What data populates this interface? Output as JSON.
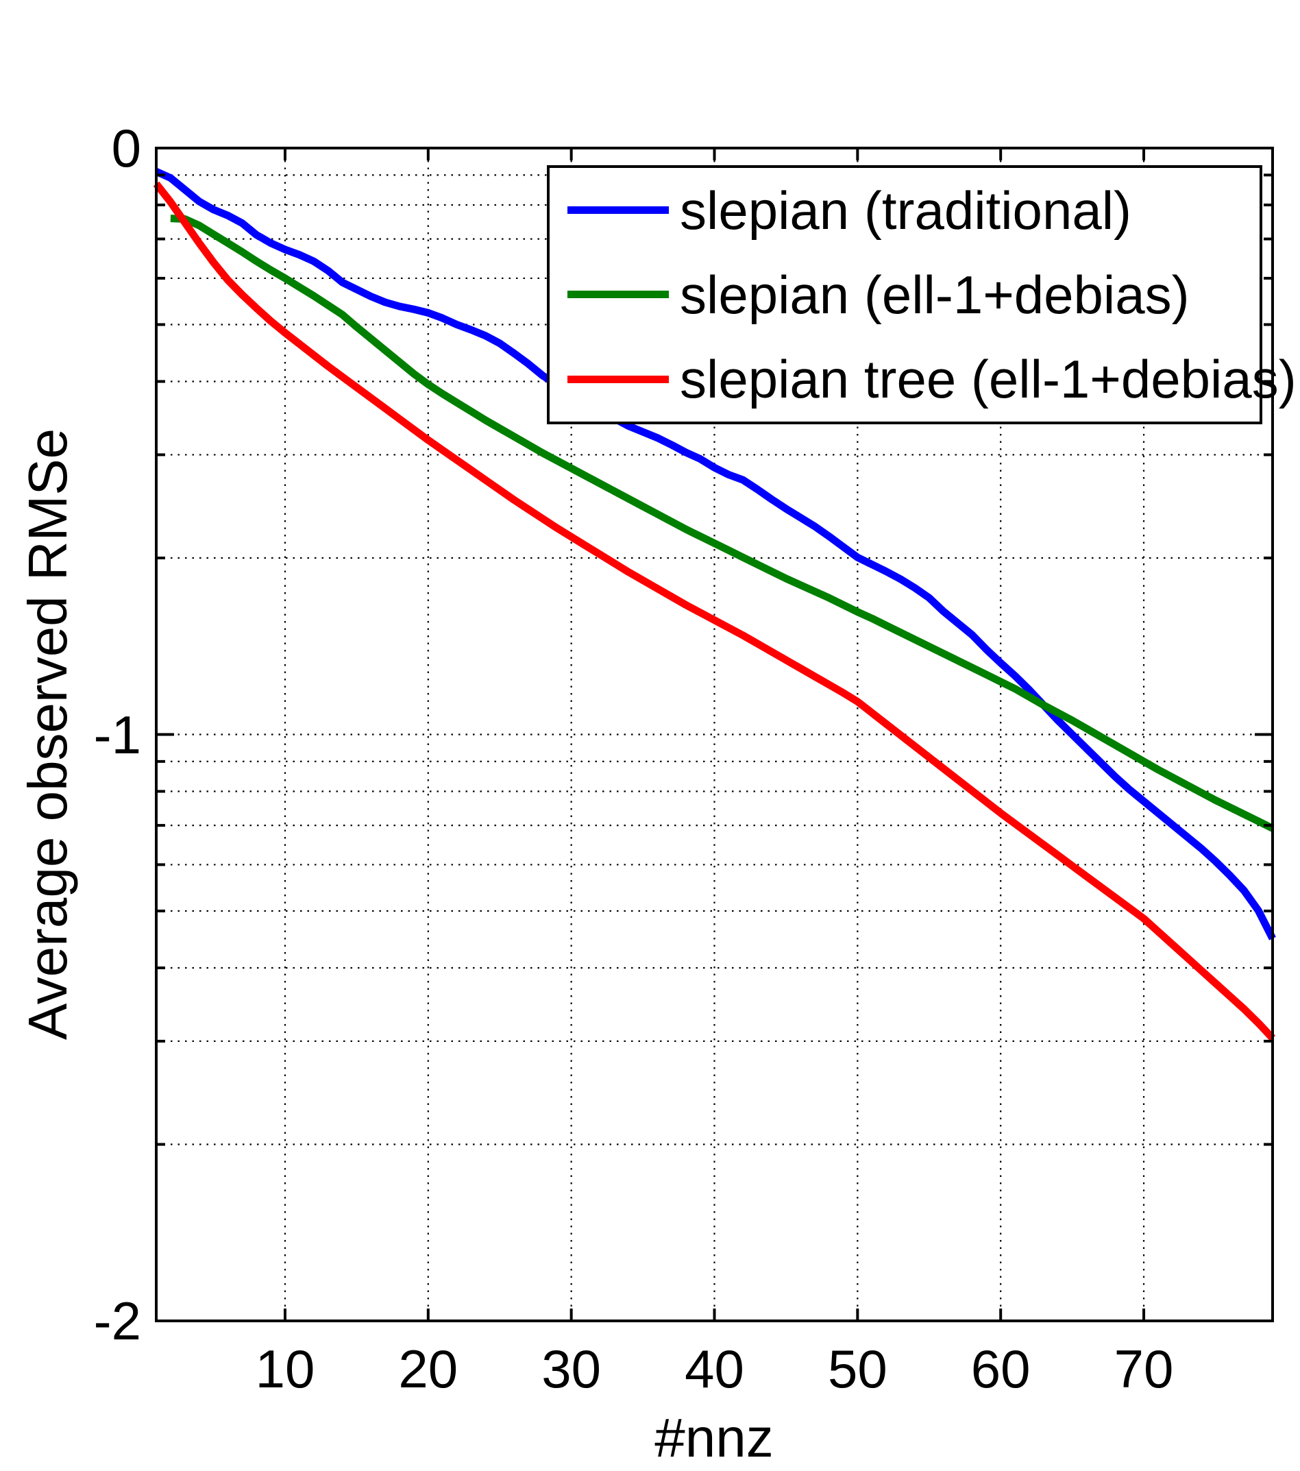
{
  "figure": {
    "background": "#ffffff",
    "text_color": "#000000",
    "axis_color": "#000000"
  },
  "chart_data": {
    "type": "line",
    "title": "",
    "xlabel": "#nnz",
    "ylabel": "Average observed RMSe",
    "xlim": [
      1,
      79
    ],
    "ylim": [
      -2,
      0
    ],
    "grid": "dotted black gridlines at x major ticks and at y minor (log-spaced) positions plus y=-1",
    "legend_position": "upper right (inside axes, opaque white box, black border)",
    "x_major_ticks": [
      10,
      20,
      30,
      40,
      50,
      60,
      70
    ],
    "x_tick_labels": [
      "10",
      "20",
      "30",
      "40",
      "50",
      "60",
      "70"
    ],
    "y_major_ticks": [
      0,
      -1,
      -2
    ],
    "y_tick_labels": [
      "0",
      "-1",
      "-2"
    ],
    "y_minor_ticks": [
      -0.046,
      -0.097,
      -0.155,
      -0.222,
      -0.301,
      -0.398,
      -0.523,
      -0.699,
      -1.046,
      -1.097,
      -1.155,
      -1.222,
      -1.301,
      -1.398,
      -1.523,
      -1.699
    ],
    "y_gridlines": [
      -0.046,
      -0.097,
      -0.155,
      -0.222,
      -0.301,
      -0.398,
      -0.523,
      -0.699,
      -1.0,
      -1.046,
      -1.097,
      -1.155,
      -1.222,
      -1.301,
      -1.398,
      -1.523,
      -1.699
    ],
    "series": [
      {
        "name": "slepian (traditional)",
        "color": "#0000ff",
        "x": [
          1,
          2,
          3,
          4,
          5,
          6,
          7,
          8,
          9,
          10,
          11,
          12,
          13,
          14,
          15,
          16,
          17,
          18,
          19,
          20,
          21,
          22,
          23,
          24,
          25,
          26,
          27,
          28,
          29,
          30,
          31,
          32,
          33,
          34,
          35,
          36,
          37,
          38,
          39,
          40,
          41,
          42,
          43,
          44,
          45,
          46,
          47,
          48,
          49,
          50,
          51,
          52,
          53,
          54,
          55,
          56,
          57,
          58,
          59,
          60,
          61,
          62,
          63,
          64,
          65,
          66,
          67,
          68,
          69,
          70,
          71,
          72,
          73,
          74,
          75,
          76,
          77,
          78,
          79
        ],
        "y": [
          -0.04,
          -0.051,
          -0.071,
          -0.091,
          -0.105,
          -0.115,
          -0.128,
          -0.148,
          -0.162,
          -0.173,
          -0.182,
          -0.193,
          -0.209,
          -0.229,
          -0.241,
          -0.253,
          -0.263,
          -0.27,
          -0.275,
          -0.281,
          -0.29,
          -0.301,
          -0.31,
          -0.32,
          -0.333,
          -0.35,
          -0.368,
          -0.388,
          -0.404,
          -0.419,
          -0.433,
          -0.447,
          -0.461,
          -0.474,
          -0.484,
          -0.494,
          -0.506,
          -0.519,
          -0.53,
          -0.545,
          -0.557,
          -0.566,
          -0.582,
          -0.599,
          -0.615,
          -0.63,
          -0.645,
          -0.662,
          -0.68,
          -0.698,
          -0.71,
          -0.722,
          -0.735,
          -0.75,
          -0.767,
          -0.79,
          -0.81,
          -0.83,
          -0.855,
          -0.878,
          -0.9,
          -0.924,
          -0.95,
          -0.976,
          -1.0,
          -1.024,
          -1.048,
          -1.072,
          -1.094,
          -1.114,
          -1.134,
          -1.154,
          -1.174,
          -1.194,
          -1.216,
          -1.24,
          -1.266,
          -1.3,
          -1.348
        ]
      },
      {
        "name": "slepian (ell-1+debias)",
        "color": "#007f00",
        "x": [
          2,
          3,
          4,
          5,
          6,
          7,
          8,
          9,
          10,
          11,
          12,
          13,
          14,
          15,
          16,
          17,
          18,
          19,
          20,
          21,
          22,
          23,
          24,
          25,
          26,
          27,
          28,
          29,
          30,
          31,
          32,
          33,
          34,
          35,
          36,
          37,
          38,
          39,
          40,
          41,
          42,
          43,
          44,
          45,
          46,
          47,
          48,
          49,
          50,
          51,
          52,
          53,
          54,
          55,
          56,
          57,
          58,
          59,
          60,
          61,
          62,
          63,
          64,
          65,
          66,
          67,
          68,
          69,
          70,
          71,
          72,
          73,
          74,
          75,
          76,
          77,
          78,
          79
        ],
        "y": [
          -0.12,
          -0.121,
          -0.132,
          -0.147,
          -0.162,
          -0.177,
          -0.193,
          -0.208,
          -0.222,
          -0.237,
          -0.252,
          -0.268,
          -0.284,
          -0.305,
          -0.325,
          -0.345,
          -0.365,
          -0.385,
          -0.403,
          -0.419,
          -0.434,
          -0.449,
          -0.464,
          -0.478,
          -0.492,
          -0.506,
          -0.52,
          -0.533,
          -0.546,
          -0.559,
          -0.572,
          -0.585,
          -0.598,
          -0.611,
          -0.624,
          -0.637,
          -0.65,
          -0.662,
          -0.674,
          -0.686,
          -0.698,
          -0.71,
          -0.722,
          -0.734,
          -0.745,
          -0.756,
          -0.767,
          -0.779,
          -0.791,
          -0.802,
          -0.814,
          -0.826,
          -0.838,
          -0.85,
          -0.862,
          -0.874,
          -0.886,
          -0.898,
          -0.91,
          -0.922,
          -0.936,
          -0.95,
          -0.963,
          -0.976,
          -0.99,
          -1.004,
          -1.018,
          -1.032,
          -1.046,
          -1.06,
          -1.073,
          -1.086,
          -1.099,
          -1.112,
          -1.124,
          -1.136,
          -1.148,
          -1.16
        ]
      },
      {
        "name": "slepian tree (ell-1+debias)",
        "color": "#ff0000",
        "x": [
          1,
          2,
          3,
          4,
          5,
          6,
          7,
          8,
          9,
          10,
          11,
          12,
          13,
          14,
          15,
          16,
          17,
          18,
          19,
          20,
          21,
          22,
          23,
          24,
          25,
          26,
          27,
          28,
          29,
          30,
          31,
          32,
          33,
          34,
          35,
          36,
          37,
          38,
          39,
          40,
          41,
          42,
          43,
          44,
          45,
          46,
          47,
          48,
          49,
          50,
          51,
          52,
          53,
          54,
          55,
          56,
          57,
          58,
          59,
          60,
          61,
          62,
          63,
          64,
          65,
          66,
          67,
          68,
          69,
          70,
          71,
          72,
          73,
          74,
          75,
          76,
          77,
          78,
          79
        ],
        "y": [
          -0.061,
          -0.092,
          -0.127,
          -0.162,
          -0.195,
          -0.225,
          -0.25,
          -0.273,
          -0.295,
          -0.315,
          -0.334,
          -0.353,
          -0.372,
          -0.39,
          -0.408,
          -0.426,
          -0.444,
          -0.462,
          -0.48,
          -0.498,
          -0.515,
          -0.532,
          -0.549,
          -0.566,
          -0.583,
          -0.6,
          -0.616,
          -0.632,
          -0.648,
          -0.663,
          -0.678,
          -0.693,
          -0.708,
          -0.723,
          -0.737,
          -0.751,
          -0.765,
          -0.779,
          -0.792,
          -0.805,
          -0.818,
          -0.831,
          -0.845,
          -0.859,
          -0.873,
          -0.887,
          -0.901,
          -0.915,
          -0.929,
          -0.944,
          -0.963,
          -0.982,
          -1.001,
          -1.02,
          -1.039,
          -1.058,
          -1.077,
          -1.096,
          -1.115,
          -1.134,
          -1.152,
          -1.17,
          -1.188,
          -1.206,
          -1.224,
          -1.242,
          -1.26,
          -1.278,
          -1.296,
          -1.314,
          -1.336,
          -1.358,
          -1.38,
          -1.402,
          -1.424,
          -1.446,
          -1.468,
          -1.492,
          -1.518
        ]
      }
    ]
  }
}
